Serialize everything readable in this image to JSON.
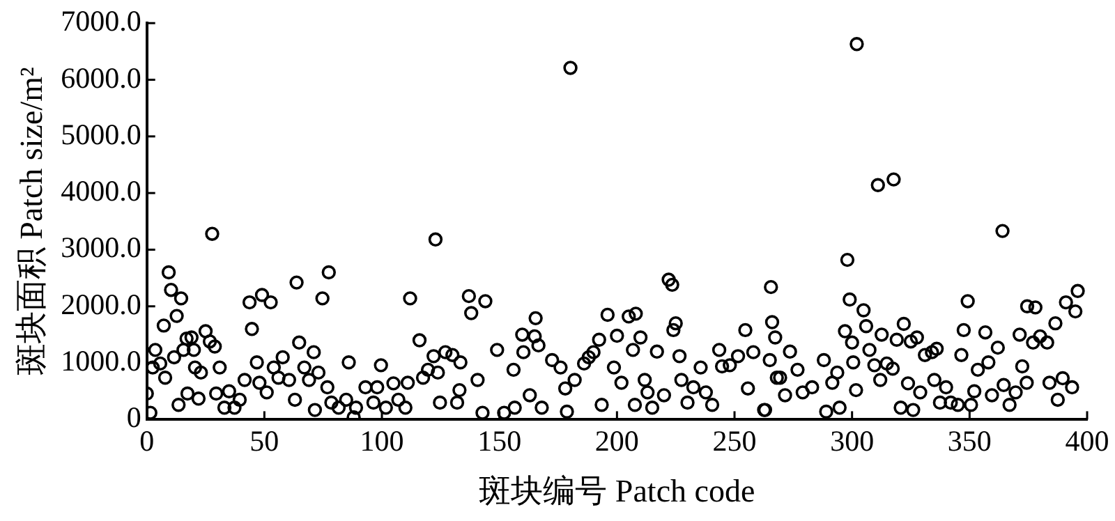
{
  "chart_data": {
    "type": "scatter",
    "xlabel": "斑块编号 Patch code",
    "ylabel": "斑块面积 Patch size/m²",
    "xlim": [
      0,
      400
    ],
    "xticks": [
      0,
      50,
      100,
      150,
      200,
      250,
      300,
      350,
      400
    ],
    "ylim": [
      0,
      7000
    ],
    "yticks": [
      {
        "value": 0,
        "label": "0"
      },
      {
        "value": 1000,
        "label": "1000.0"
      },
      {
        "value": 2000,
        "label": "2000.0"
      },
      {
        "value": 3000,
        "label": "3000.0"
      },
      {
        "value": 4000,
        "label": "4000.0"
      },
      {
        "value": 5000,
        "label": "5000.0"
      },
      {
        "value": 6000,
        "label": "6000.0"
      },
      {
        "value": 7000,
        "label": "7000.0"
      }
    ],
    "grid": false,
    "legend": false,
    "marker": "circle",
    "series": [
      {
        "color": "#000000",
        "x": [
          0,
          1.5,
          2.5,
          3.6,
          5.7,
          7.2,
          7.8,
          9.3,
          10.3,
          11.6,
          12.7,
          13.5,
          14.6,
          15.6,
          16.9,
          17.3,
          19,
          20,
          20.5,
          22,
          23,
          25,
          26.8,
          27.8,
          28.9,
          29.5,
          31,
          33,
          35,
          37.3,
          39.5,
          41.6,
          43.7,
          44.7,
          46.8,
          47.9,
          49,
          51,
          52.7,
          54,
          56,
          57.8,
          60.5,
          63,
          63.7,
          64.8,
          67,
          69,
          71,
          71.5,
          73,
          74.7,
          76.8,
          77.4,
          78.5,
          81.6,
          84.8,
          85.9,
          88,
          89,
          93,
          96.4,
          98,
          99.6,
          101.7,
          104.9,
          107,
          110,
          111,
          112,
          116,
          117.5,
          119.6,
          122,
          122.8,
          123.8,
          124.7,
          127,
          130,
          132,
          133,
          133.4,
          137,
          138,
          140.7,
          142.8,
          144,
          149,
          152,
          156,
          156.5,
          159.7,
          160.2,
          162.9,
          165,
          165.4,
          166.6,
          168,
          172.4,
          176,
          178,
          178.7,
          180.2,
          182,
          186,
          188,
          190,
          192.4,
          193.5,
          196,
          198.7,
          200,
          201.9,
          205,
          206.8,
          207.6,
          208,
          210,
          211.8,
          213,
          215,
          217,
          220,
          222,
          223.5,
          224,
          225,
          226.6,
          227.4,
          230,
          232.5,
          235.6,
          237.8,
          240.5,
          243.5,
          244.7,
          248,
          251.5,
          254.6,
          255.7,
          258,
          262.6,
          263,
          265,
          265.5,
          266,
          267.3,
          268,
          269.4,
          271.5,
          273.6,
          276.8,
          279,
          283,
          288,
          289,
          291.6,
          293.7,
          294.7,
          297,
          298,
          299,
          300,
          300.5,
          301.7,
          302,
          304.9,
          306,
          307.4,
          309.5,
          311,
          312,
          312.6,
          314.8,
          317.3,
          317.7,
          319,
          320.7,
          322,
          323.8,
          325,
          326,
          327.6,
          329,
          331,
          334,
          335,
          336,
          337.4,
          340,
          342,
          345,
          346.5,
          347.5,
          349.2,
          350.6,
          352,
          353.5,
          356.7,
          358,
          359.5,
          362,
          364,
          364.5,
          367,
          369.6,
          371.3,
          372.4,
          374.3,
          374.5,
          377,
          378,
          380,
          383,
          384,
          386.5,
          387.5,
          389.6,
          391,
          393.6,
          395,
          396
        ],
        "values": [
          460,
          120,
          920,
          1230,
          990,
          1660,
          740,
          2600,
          2290,
          1100,
          1830,
          260,
          2140,
          1230,
          1430,
          460,
          1450,
          1230,
          920,
          370,
          830,
          1560,
          1380,
          3280,
          1290,
          460,
          920,
          210,
          500,
          210,
          350,
          700,
          2070,
          1600,
          1010,
          650,
          2200,
          480,
          2070,
          920,
          740,
          1100,
          700,
          350,
          2420,
          1360,
          920,
          700,
          1190,
          170,
          830,
          2140,
          570,
          2600,
          300,
          210,
          350,
          1010,
          40,
          210,
          570,
          300,
          570,
          960,
          210,
          640,
          350,
          210,
          650,
          2140,
          1400,
          740,
          880,
          1120,
          3180,
          830,
          300,
          1190,
          1140,
          300,
          520,
          1010,
          2180,
          1880,
          700,
          120,
          2090,
          1230,
          120,
          880,
          210,
          1500,
          1190,
          430,
          1470,
          1790,
          1310,
          210,
          1050,
          920,
          550,
          140,
          6210,
          700,
          990,
          1100,
          1190,
          1410,
          260,
          1850,
          920,
          1480,
          650,
          1820,
          1230,
          260,
          1870,
          1450,
          700,
          480,
          210,
          1200,
          430,
          2470,
          2380,
          1580,
          1700,
          1120,
          700,
          300,
          570,
          920,
          480,
          260,
          1230,
          940,
          960,
          1120,
          1580,
          550,
          1190,
          170,
          170,
          1050,
          2340,
          1720,
          1450,
          740,
          740,
          430,
          1200,
          880,
          480,
          570,
          1050,
          140,
          650,
          830,
          210,
          1560,
          2820,
          2120,
          1360,
          1010,
          520,
          6630,
          1930,
          1650,
          1230,
          960,
          4140,
          700,
          1500,
          990,
          900,
          4240,
          1410,
          210,
          1690,
          640,
          1380,
          170,
          1450,
          480,
          1140,
          1190,
          700,
          1250,
          300,
          570,
          300,
          260,
          1140,
          1580,
          2090,
          260,
          500,
          880,
          1540,
          1010,
          430,
          1270,
          3330,
          610,
          260,
          480,
          1500,
          940,
          650,
          2000,
          1360,
          1980,
          1470,
          1360,
          650,
          1700,
          350,
          730,
          2070,
          570,
          1910,
          2270
        ]
      }
    ]
  }
}
